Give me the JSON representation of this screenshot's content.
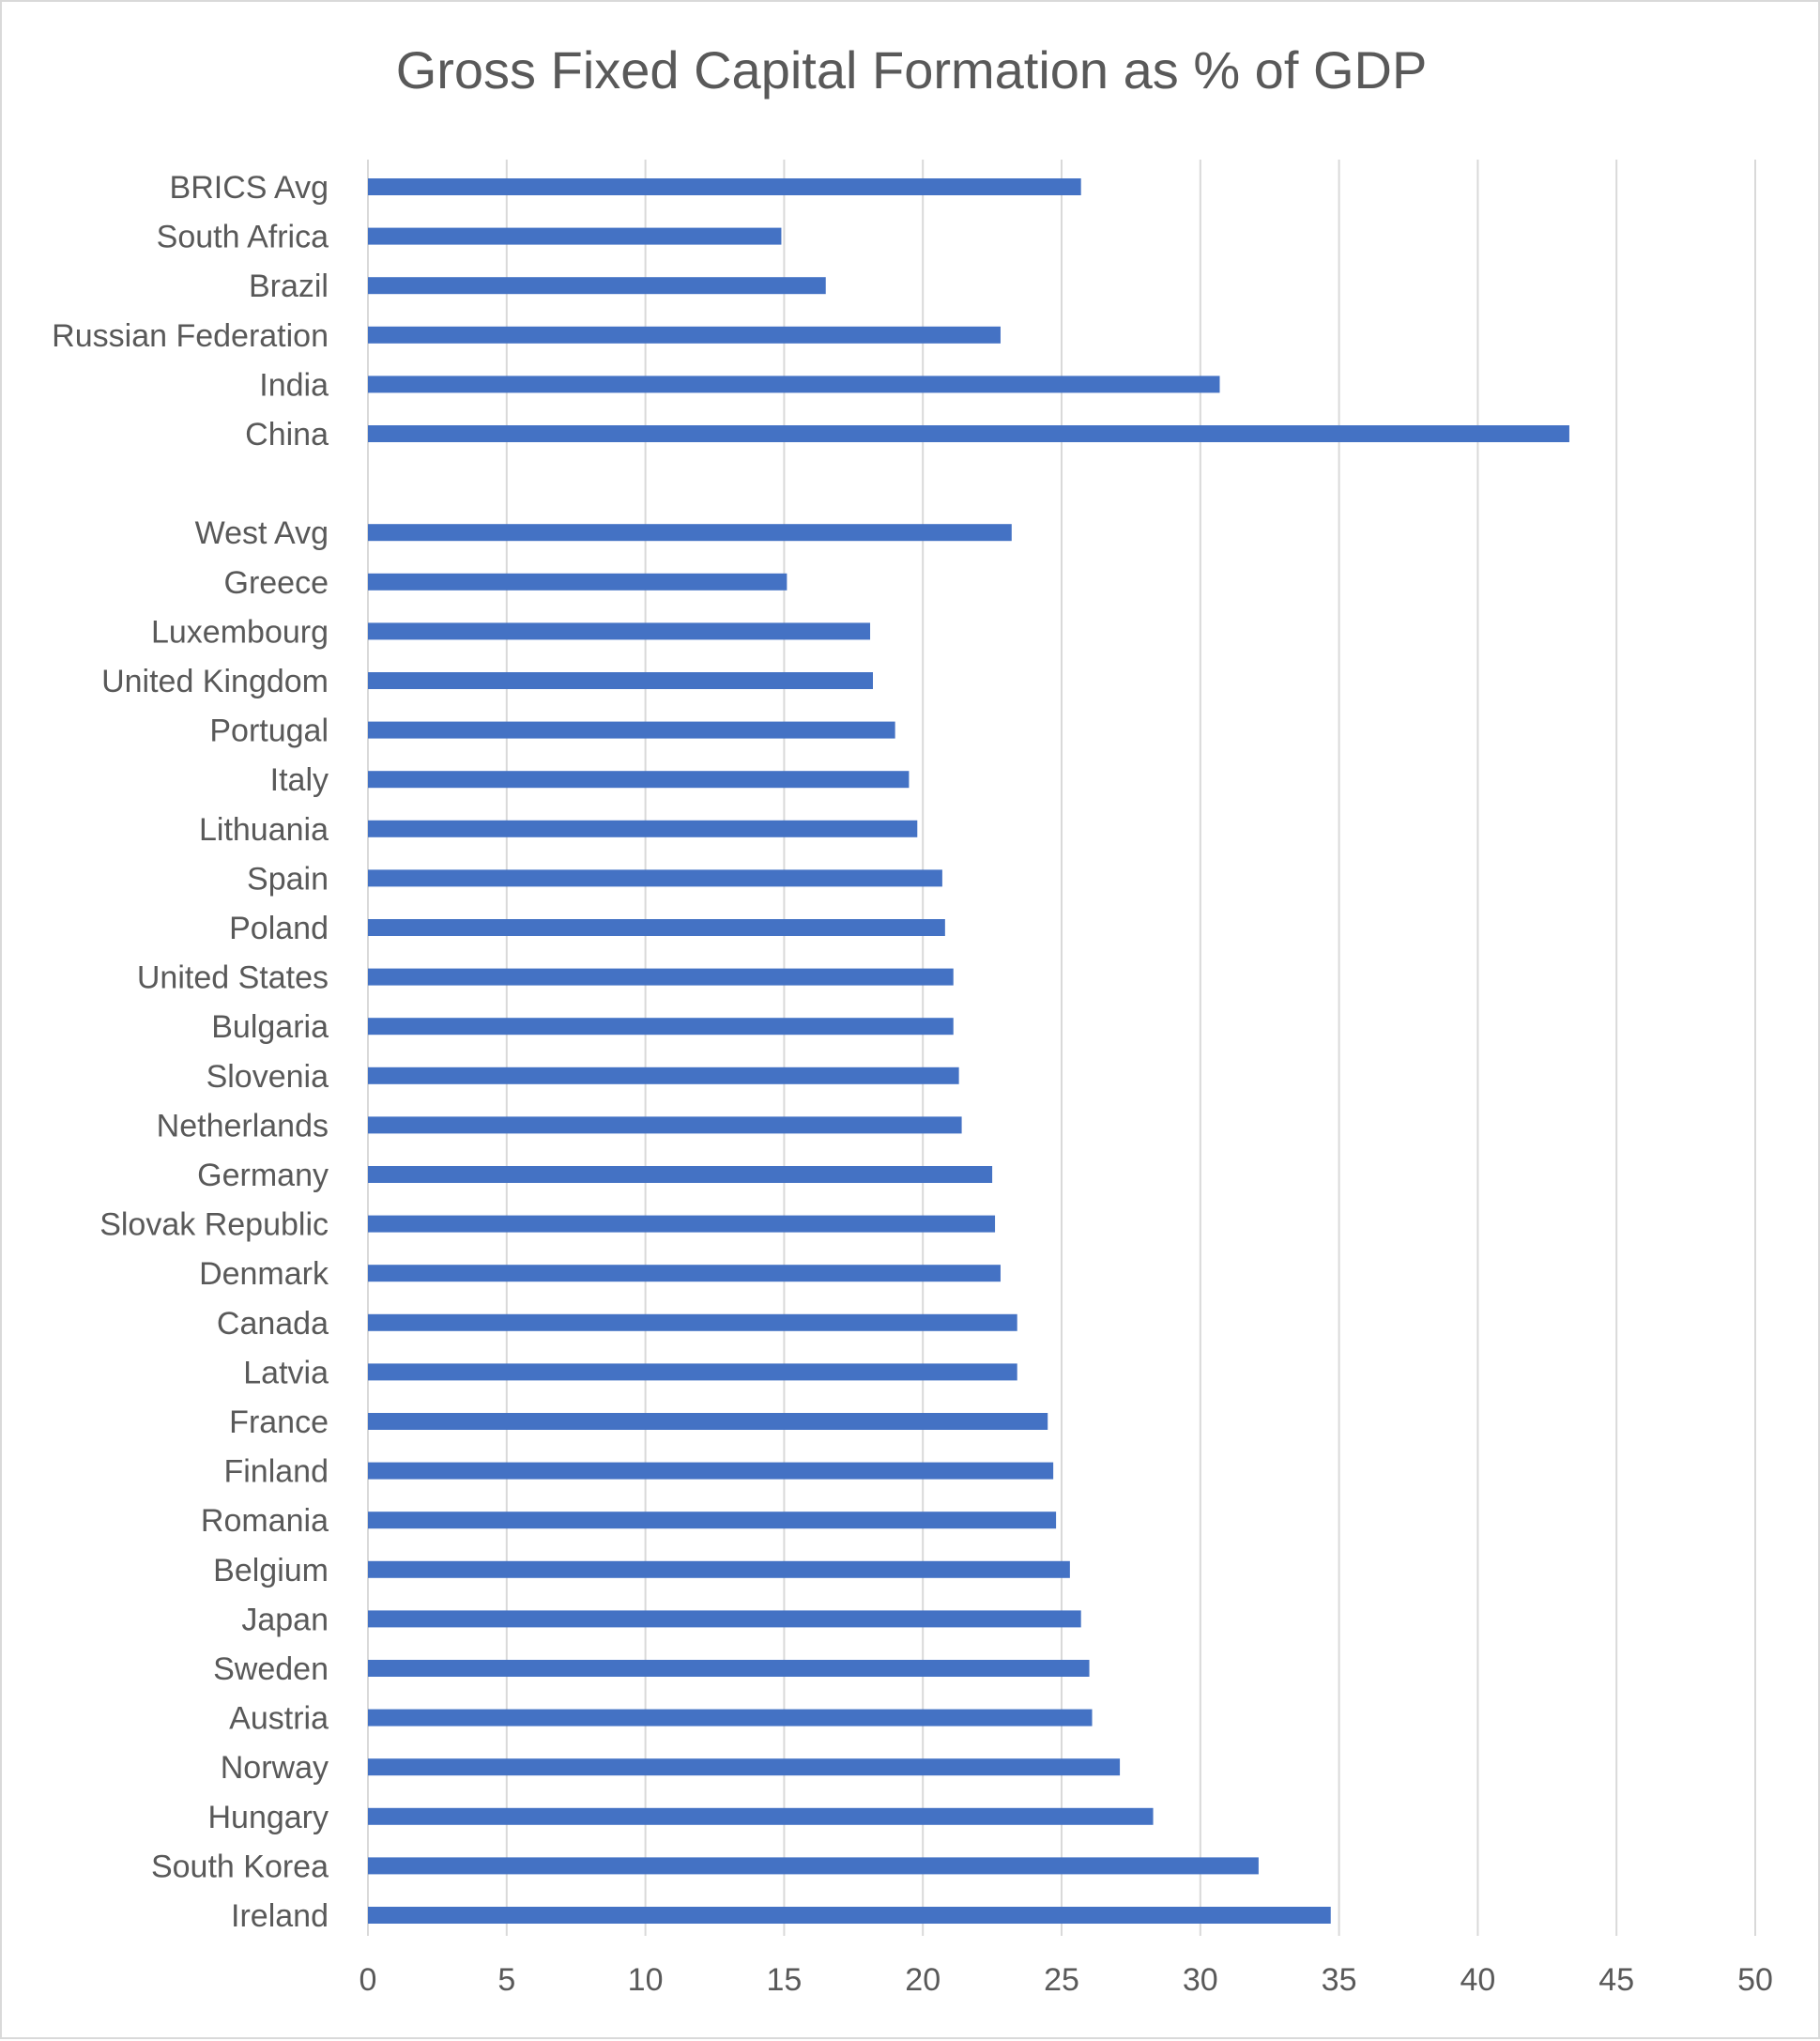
{
  "chart_data": {
    "type": "bar",
    "orientation": "horizontal",
    "title": "Gross Fixed Capital Formation as % of GDP",
    "xlabel": "",
    "ylabel": "",
    "xlim": [
      0,
      50
    ],
    "x_ticks": [
      "0",
      "5",
      "10",
      "15",
      "20",
      "25",
      "30",
      "35",
      "40",
      "45",
      "50"
    ],
    "grid": "vertical",
    "legend": "none",
    "bar_color": "#4472C4",
    "grid_color": "#d9d9d9",
    "categories": [
      "BRICS Avg",
      "South Africa",
      "Brazil",
      "Russian Federation",
      "India",
      "China",
      "",
      "West Avg",
      "Greece",
      "Luxembourg",
      "United Kingdom",
      "Portugal",
      "Italy",
      "Lithuania",
      "Spain",
      "Poland",
      "United States",
      "Bulgaria",
      "Slovenia",
      "Netherlands",
      "Germany",
      "Slovak Republic",
      "Denmark",
      "Canada",
      "Latvia",
      "France",
      "Finland",
      "Romania",
      "Belgium",
      "Japan",
      "Sweden",
      "Austria",
      "Norway",
      "Hungary",
      "South Korea",
      "Ireland"
    ],
    "values": [
      25.7,
      14.9,
      16.5,
      22.8,
      30.7,
      43.3,
      null,
      23.2,
      15.1,
      18.1,
      18.2,
      19.0,
      19.5,
      19.8,
      20.7,
      20.8,
      21.1,
      21.1,
      21.3,
      21.4,
      22.5,
      22.6,
      22.8,
      23.4,
      23.4,
      24.5,
      24.7,
      24.8,
      25.3,
      25.7,
      26.0,
      26.1,
      27.1,
      28.3,
      32.1,
      34.7
    ]
  }
}
